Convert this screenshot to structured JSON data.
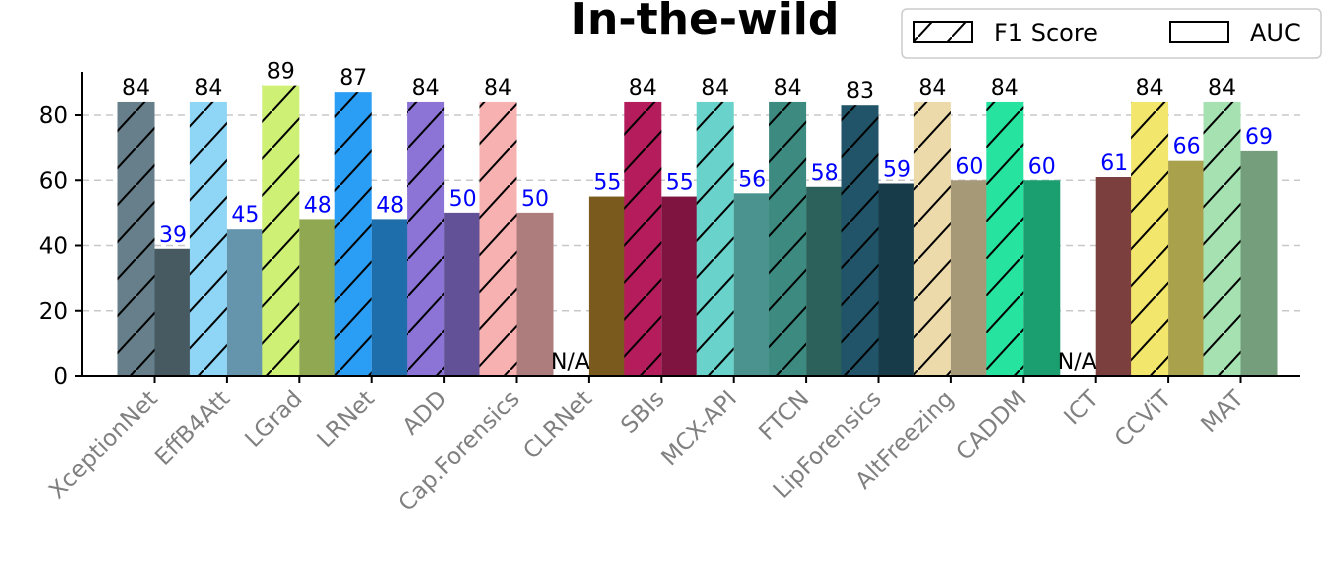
{
  "chart_data": {
    "type": "bar",
    "title": "In-the-wild",
    "xlabel": "",
    "ylabel": "",
    "ylim": [
      0,
      90
    ],
    "yticks": [
      0,
      20,
      40,
      60,
      80
    ],
    "grid": "horizontal-dashed",
    "legend_position": "top-right",
    "categories": [
      "XceptionNet",
      "EffB4Att",
      "LGrad",
      "LRNet",
      "ADD",
      "Cap.Forensics",
      "CLRNet",
      "SBIs",
      "MCX-API",
      "FTCN",
      "LipForensics",
      "AltFreezing",
      "CADDM",
      "ICT",
      "CCViT",
      "MAT"
    ],
    "colors": [
      "#667F8A",
      "#8FD5F5",
      "#CDF075",
      "#2A9DF4",
      "#8C73D6",
      "#F7B1B1",
      "#B0812A",
      "#B51C5C",
      "#69D2CB",
      "#3D8B80",
      "#215468",
      "#EDDAAB",
      "#27E3A0",
      "#B05B58",
      "#F3E66C",
      "#A6E1B1"
    ],
    "series": [
      {
        "name": "F1 Score",
        "pattern": "hatched",
        "values": [
          84,
          84,
          89,
          87,
          84,
          84,
          null,
          84,
          84,
          84,
          83,
          84,
          84,
          null,
          84,
          84
        ],
        "labels": [
          "84",
          "84",
          "89",
          "87",
          "84",
          "84",
          "N/A",
          "84",
          "84",
          "84",
          "83",
          "84",
          "84",
          "N/A",
          "84",
          "84"
        ],
        "label_color": "#000000"
      },
      {
        "name": "AUC",
        "pattern": "solid",
        "values": [
          39,
          45,
          48,
          48,
          50,
          50,
          55,
          55,
          56,
          58,
          59,
          60,
          60,
          61,
          66,
          69
        ],
        "labels": [
          "39",
          "45",
          "48",
          "48",
          "50",
          "50",
          "55",
          "55",
          "56",
          "58",
          "59",
          "60",
          "60",
          "61",
          "66",
          "69"
        ],
        "label_color": "#0000FF"
      }
    ]
  }
}
